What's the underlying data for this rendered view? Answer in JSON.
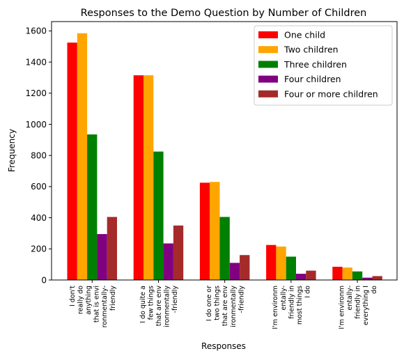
{
  "chart_data": {
    "type": "bar",
    "title": "Responses to the Demo Question by Number of Children",
    "xlabel": "Responses",
    "ylabel": "Frequency",
    "ylim": [
      0,
      1660
    ],
    "yticks": [
      0,
      200,
      400,
      600,
      800,
      1000,
      1200,
      1400,
      1600
    ],
    "legend_position": "top-right",
    "categories": [
      [
        "I don't",
        "really do",
        "anything",
        "that is envi",
        "ronmentally-",
        "friendly"
      ],
      [
        "I do quite a",
        "few things",
        "that are env",
        "ironmentally",
        "-friendly"
      ],
      [
        "I do one or",
        "two things",
        "that are env",
        "ironmentally",
        "-friendly"
      ],
      [
        "I'm environm",
        "entally-",
        "friendly in",
        "most things",
        "I do"
      ],
      [
        "I'm environm",
        "entally-",
        "friendly in",
        "everything I",
        "do"
      ]
    ],
    "series": [
      {
        "name": "One child",
        "color": "#ff0000",
        "values": [
          1525,
          1315,
          625,
          225,
          85
        ]
      },
      {
        "name": "Two children",
        "color": "#ffa500",
        "values": [
          1585,
          1315,
          630,
          215,
          80
        ]
      },
      {
        "name": "Three children",
        "color": "#008000",
        "values": [
          935,
          825,
          405,
          150,
          55
        ]
      },
      {
        "name": "Four children",
        "color": "#800080",
        "values": [
          295,
          235,
          110,
          40,
          15
        ]
      },
      {
        "name": "Four or more children",
        "color": "#a52a2a",
        "values": [
          405,
          350,
          160,
          60,
          25
        ]
      }
    ]
  }
}
